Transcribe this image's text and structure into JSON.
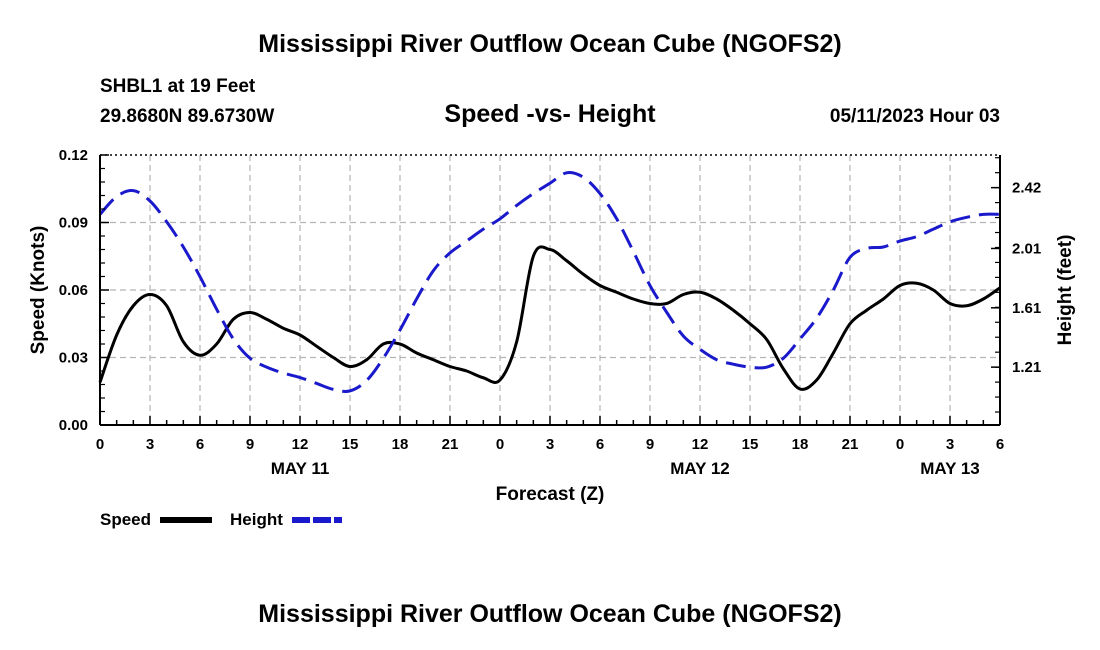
{
  "page": {
    "title": "Mississippi River Outflow Ocean Cube (NGOFS2)",
    "bottom_title": "Mississippi River Outflow Ocean Cube (NGOFS2)",
    "station": "SHBL1 at 19 Feet",
    "coordinates": "29.8680N  89.6730W",
    "subtitle": "Speed -vs- Height",
    "datetime": "05/11/2023 Hour 03"
  },
  "chart_data": {
    "type": "line",
    "title": "Speed -vs- Height",
    "xlabel": "Forecast (Z)",
    "ylabel_left": "Speed (Knots)",
    "ylabel_right": "Height (feet)",
    "xlim": [
      0,
      54
    ],
    "ylim_left": [
      0,
      0.12
    ],
    "ylim_right": [
      0.82,
      2.64
    ],
    "grid": true,
    "colors": {
      "speed": "#000000",
      "height": "#1a1acc",
      "grid": "#b4b4b4"
    },
    "x_ticks": [
      0,
      3,
      6,
      9,
      12,
      15,
      18,
      21,
      24,
      27,
      30,
      33,
      36,
      39,
      42,
      45,
      48,
      51,
      54
    ],
    "x_tick_labels": [
      "0",
      "3",
      "6",
      "9",
      "12",
      "15",
      "18",
      "21",
      "0",
      "3",
      "6",
      "9",
      "12",
      "15",
      "18",
      "21",
      "0",
      "3",
      "6"
    ],
    "date_labels": [
      {
        "x": 12,
        "label": "MAY 11"
      },
      {
        "x": 36,
        "label": "MAY 12"
      },
      {
        "x": 51,
        "label": "MAY 13"
      }
    ],
    "y_left_ticks": [
      0.0,
      0.03,
      0.06,
      0.09,
      0.12
    ],
    "y_left_tick_labels": [
      "0.00",
      "0.03",
      "0.06",
      "0.09",
      "0.12"
    ],
    "y_right_ticks": [
      1.21,
      1.61,
      2.01,
      2.42
    ],
    "y_right_tick_labels": [
      "1.21",
      "1.61",
      "2.01",
      "2.42"
    ],
    "legend": {
      "placement": "bottom-left",
      "entries": [
        {
          "name": "Speed",
          "series": "speed"
        },
        {
          "name": "Height",
          "series": "height"
        }
      ]
    },
    "series": [
      {
        "name": "Speed",
        "axis": "left",
        "style": "solid",
        "x": [
          0,
          1,
          2,
          3,
          4,
          5,
          6,
          7,
          8,
          9,
          10,
          11,
          12,
          13,
          14,
          15,
          16,
          17,
          18,
          19,
          20,
          21,
          22,
          23,
          24,
          25,
          26,
          27,
          28,
          29,
          30,
          31,
          32,
          33,
          34,
          35,
          36,
          37,
          38,
          39,
          40,
          41,
          42,
          43,
          44,
          45,
          46,
          47,
          48,
          49,
          50,
          51,
          52,
          53,
          54
        ],
        "values": [
          0.019,
          0.04,
          0.053,
          0.058,
          0.053,
          0.037,
          0.031,
          0.036,
          0.047,
          0.05,
          0.047,
          0.043,
          0.04,
          0.035,
          0.03,
          0.026,
          0.029,
          0.036,
          0.036,
          0.032,
          0.029,
          0.026,
          0.024,
          0.021,
          0.02,
          0.037,
          0.075,
          0.078,
          0.073,
          0.067,
          0.062,
          0.059,
          0.056,
          0.054,
          0.054,
          0.058,
          0.059,
          0.056,
          0.051,
          0.045,
          0.038,
          0.025,
          0.016,
          0.02,
          0.032,
          0.045,
          0.051,
          0.056,
          0.062,
          0.063,
          0.06,
          0.054,
          0.053,
          0.056,
          0.061
        ]
      },
      {
        "name": "Height",
        "axis": "right",
        "style": "dashed",
        "x": [
          0,
          1,
          2,
          3,
          4,
          5,
          6,
          7,
          8,
          9,
          10,
          11,
          12,
          13,
          14,
          15,
          16,
          17,
          18,
          19,
          20,
          21,
          22,
          23,
          24,
          25,
          26,
          27,
          28,
          29,
          30,
          31,
          32,
          33,
          34,
          35,
          36,
          37,
          38,
          39,
          40,
          41,
          42,
          43,
          44,
          45,
          46,
          47,
          48,
          49,
          50,
          51,
          52,
          53,
          54
        ],
        "values": [
          2.24,
          2.36,
          2.4,
          2.33,
          2.19,
          2.02,
          1.82,
          1.6,
          1.4,
          1.27,
          1.21,
          1.17,
          1.14,
          1.1,
          1.06,
          1.05,
          1.12,
          1.27,
          1.46,
          1.67,
          1.86,
          1.98,
          2.06,
          2.14,
          2.21,
          2.3,
          2.38,
          2.45,
          2.52,
          2.49,
          2.38,
          2.21,
          1.99,
          1.76,
          1.58,
          1.42,
          1.33,
          1.26,
          1.23,
          1.21,
          1.21,
          1.27,
          1.4,
          1.54,
          1.73,
          1.95,
          2.01,
          2.02,
          2.06,
          2.09,
          2.14,
          2.19,
          2.22,
          2.24,
          2.24
        ]
      }
    ]
  }
}
